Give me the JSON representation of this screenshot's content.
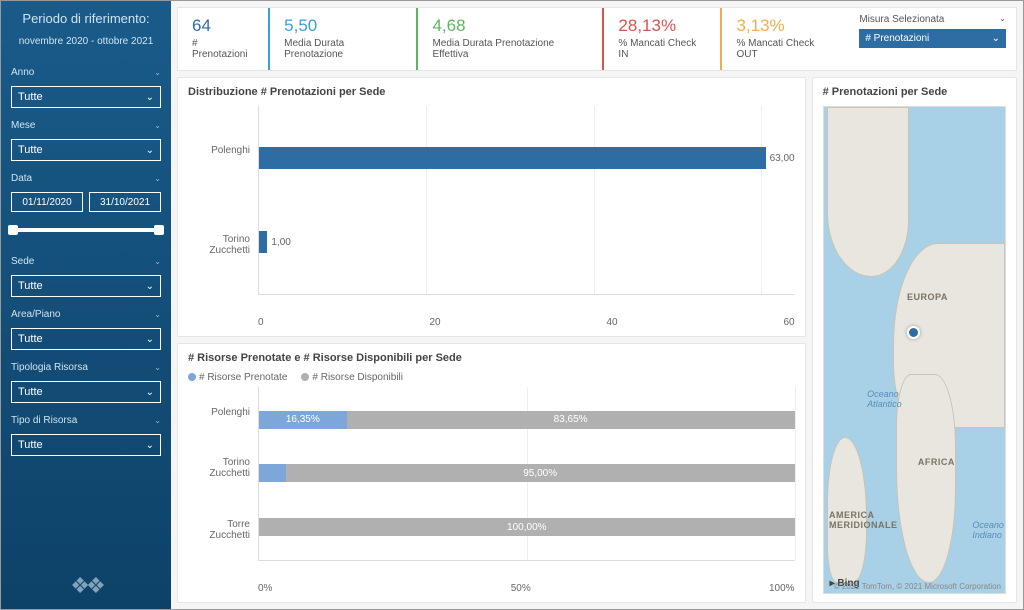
{
  "sidebar": {
    "period_title": "Periodo di riferimento:",
    "period_sub": "novembre 2020 - ottobre 2021",
    "filters": {
      "anno": {
        "label": "Anno",
        "value": "Tutte"
      },
      "mese": {
        "label": "Mese",
        "value": "Tutte"
      },
      "data": {
        "label": "Data",
        "from": "01/11/2020",
        "to": "31/10/2021"
      },
      "sede": {
        "label": "Sede",
        "value": "Tutte"
      },
      "area": {
        "label": "Area/Piano",
        "value": "Tutte"
      },
      "tipologia": {
        "label": "Tipologia Risorsa",
        "value": "Tutte"
      },
      "tipo": {
        "label": "Tipo di Risorsa",
        "value": "Tutte"
      }
    }
  },
  "kpis": [
    {
      "value": "64",
      "label": "# Prenotazioni",
      "color": "#2e6ca4"
    },
    {
      "value": "5,50",
      "label": "Media Durata Prenotazione",
      "color": "#3a9fd4"
    },
    {
      "value": "4,68",
      "label": "Media Durata Prenotazione Effettiva",
      "color": "#5cb85c"
    },
    {
      "value": "28,13%",
      "label": "% Mancati Check IN",
      "color": "#d9534f"
    },
    {
      "value": "3,13%",
      "label": "% Mancati Check OUT",
      "color": "#f0ad4e"
    }
  ],
  "measure_selector": {
    "label": "Misura Selezionata",
    "value": "# Prenotazioni",
    "bg_color": "#2e6ca4"
  },
  "chart_dist": {
    "title": "Distribuzione # Prenotazioni per Sede",
    "x_ticks": [
      "0",
      "20",
      "40",
      "60"
    ],
    "x_max": 64,
    "bars": [
      {
        "category": "Polenghi",
        "value": 63,
        "label": "63,00",
        "color": "#2e6ca4"
      },
      {
        "category": "Torino Zucchetti",
        "value": 1,
        "label": "1,00",
        "color": "#2e6ca4"
      }
    ]
  },
  "chart_risorse": {
    "title": "# Risorse Prenotate e # Risorse Disponibili per Sede",
    "legend": [
      {
        "name": "# Risorse Prenotate",
        "color": "#7ca7d8"
      },
      {
        "name": "# Risorse Disponibili",
        "color": "#b0b0b0"
      }
    ],
    "x_ticks": [
      "0%",
      "50%",
      "100%"
    ],
    "rows": [
      {
        "category": "Polenghi",
        "prenotate_pct": 16.35,
        "prenotate_label": "16,35%",
        "disponibili_label": "83,65%"
      },
      {
        "category": "Torino Zucchetti",
        "prenotate_pct": 5.0,
        "prenotate_label": "",
        "disponibili_label": "95,00%"
      },
      {
        "category": "Torre Zucchetti",
        "prenotate_pct": 0,
        "prenotate_label": "",
        "disponibili_label": "100,00%"
      }
    ]
  },
  "map": {
    "title": "# Prenotazioni per Sede",
    "labels": {
      "europa": "EUROPA",
      "africa": "AFRICA",
      "america_merid": "AMERICA\nMERIDIONALE",
      "atlantico": "Oceano\nAtlantico",
      "indiano": "Oceano\nIndiano"
    },
    "bing": "Bing",
    "attribution": "© 2021 TomTom, © 2021 Microsoft Corporation",
    "marker_color": "#2e6ca4"
  }
}
